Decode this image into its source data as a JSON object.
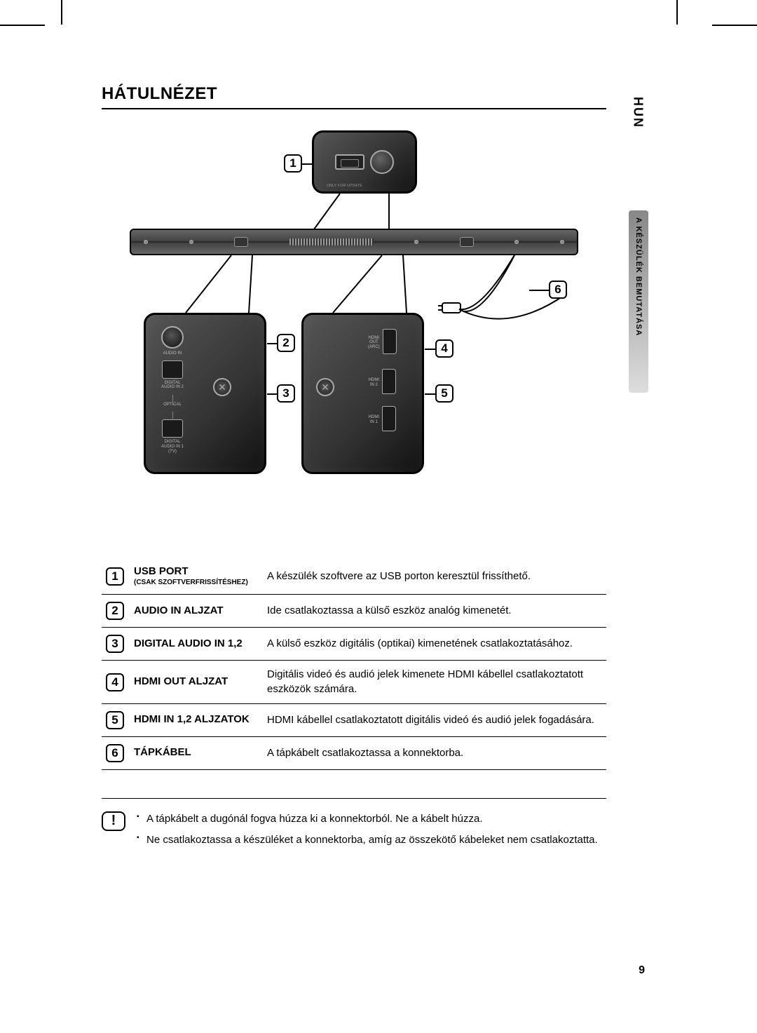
{
  "lang_tab": "HUN",
  "side_category": "A KÉSZÜLÉK BEMUTATÁSA",
  "title": "HÁTULNÉZET",
  "page_number": "9",
  "diagram": {
    "usb_detail_label": "ONLY FOR UPDATE",
    "left_panel": {
      "audio_in": "AUDIO IN",
      "d_audio_in2": "DIGITAL\nAUDIO IN 2",
      "optical": "OPTICAL",
      "d_audio_in1": "DIGITAL\nAUDIO IN 1\n(TV)"
    },
    "right_panel": {
      "hdmi_out": "HDMI\nOUT\n(ARC)",
      "hdmi_in2": "HDMI\nIN 2",
      "hdmi_in1": "HDMI\nIN 1"
    },
    "callouts": [
      "1",
      "2",
      "3",
      "4",
      "5",
      "6"
    ]
  },
  "table": [
    {
      "num": "1",
      "label": "USB PORT",
      "sublabel": "(CSAK SZOFTVERFRISSÍTÉSHEZ)",
      "desc": "A készülék szoftvere az USB porton keresztül frissíthető."
    },
    {
      "num": "2",
      "label": "AUDIO IN ALJZAT",
      "sublabel": "",
      "desc": "Ide csatlakoztassa a külső eszköz analóg kimenetét."
    },
    {
      "num": "3",
      "label": "DIGITAL AUDIO IN 1,2",
      "sublabel": "",
      "desc": "A külső eszköz digitális (optikai) kimenetének csatlakoztatásához."
    },
    {
      "num": "4",
      "label": "HDMI OUT ALJZAT",
      "sublabel": "",
      "desc": "Digitális videó és audió jelek kimenete HDMI kábellel csatlakoztatott eszközök számára."
    },
    {
      "num": "5",
      "label": "HDMI IN 1,2 ALJZATOK",
      "sublabel": "",
      "desc": "HDMI kábellel csatlakoztatott digitális videó és audió jelek fogadására."
    },
    {
      "num": "6",
      "label": "TÁPKÁBEL",
      "sublabel": "",
      "desc": "A tápkábelt csatlakoztassa a konnektorba."
    }
  ],
  "notes": [
    "A tápkábelt a dugónál fogva húzza ki a konnektorból. Ne a kábelt húzza.",
    "Ne csatlakoztassa a készüléket a konnektorba, amíg az összekötő kábeleket nem csatlakoztatta."
  ],
  "note_icon": "!",
  "colors": {
    "text": "#000000",
    "bg": "#ffffff",
    "panel_dark": "#222222",
    "panel_mid": "#555555",
    "label_light": "#bbbbbb"
  }
}
